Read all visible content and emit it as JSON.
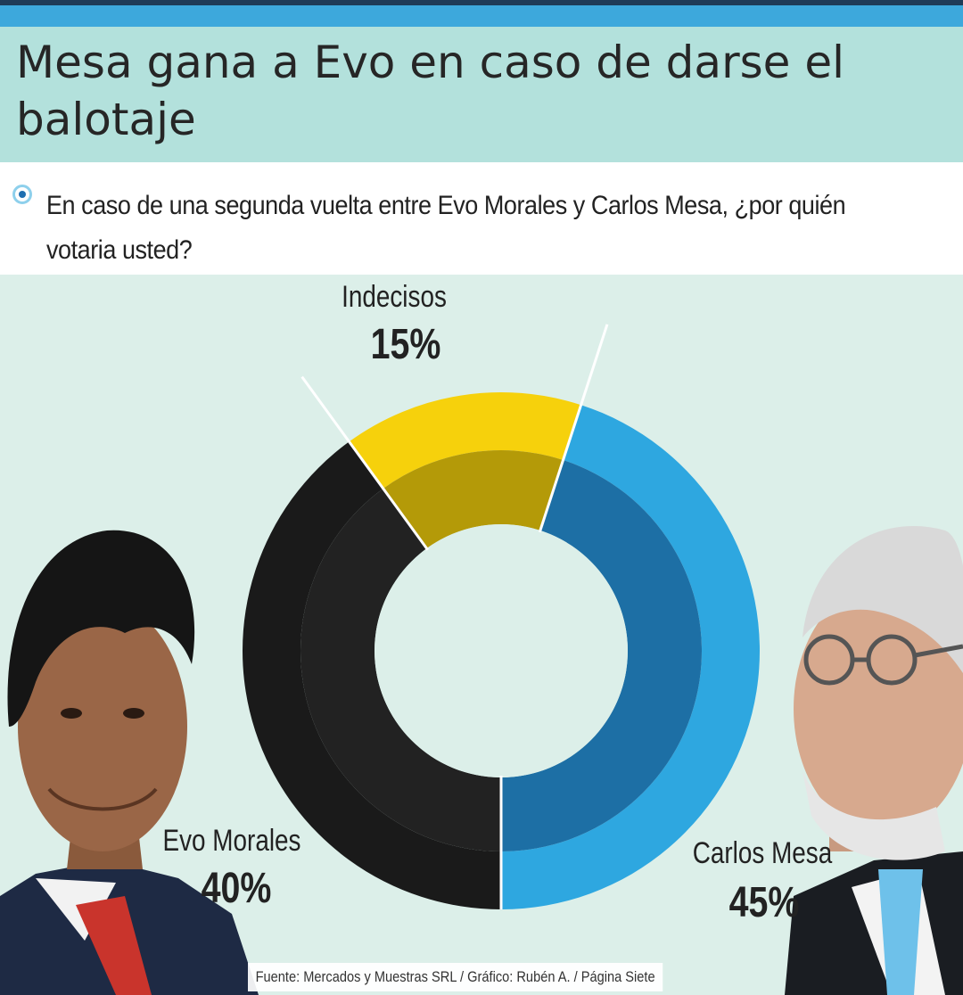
{
  "title": "Mesa gana a Evo en caso de darse el balotaje",
  "question": "En caso de una segunda vuelta entre Evo Morales y Carlos Mesa, ¿por quién votaria usted?",
  "source": "Fuente: Mercados y Muestras SRL / Gráfico: Rubén A. / Página Siete",
  "colors": {
    "mesa": "#2ea7e0",
    "mesa_inner": "#1d6fa5",
    "evo": "#1a1a1a",
    "evo_inner": "#222222",
    "indecisos": "#f6d10c",
    "indecisos_inner": "#b49a08"
  },
  "chart_data": {
    "type": "pie",
    "style": "donut",
    "categories": [
      "Carlos Mesa",
      "Evo Morales",
      "Indecisos"
    ],
    "values": [
      45,
      40,
      15
    ],
    "value_labels": [
      "45%",
      "40%",
      "15%"
    ],
    "title": "Mesa gana a Evo en caso de darse el balotaje"
  }
}
